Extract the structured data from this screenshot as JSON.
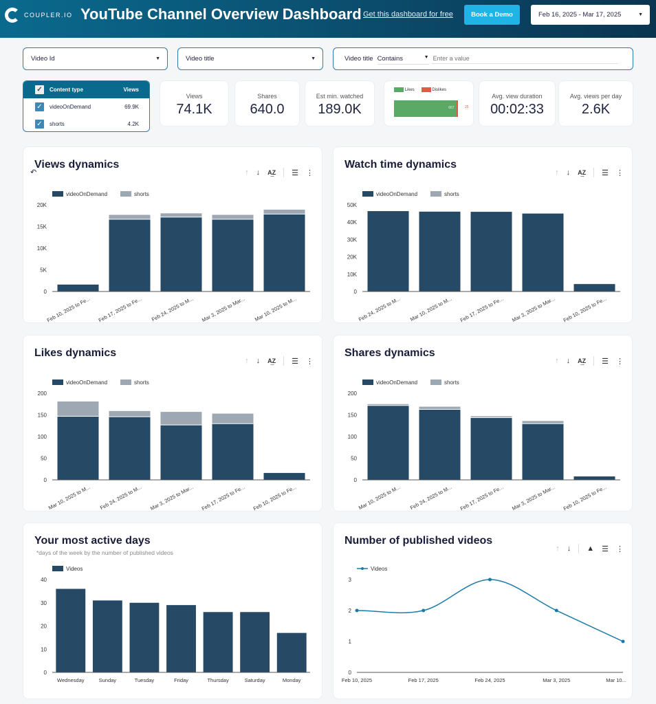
{
  "header": {
    "logo": "COUPLER.IO",
    "title": "YouTube Channel Overview Dashboard",
    "link": "Get this dashboard for free",
    "demo": "Book a Demo",
    "date_range": "Feb 16, 2025 - Mar 17, 2025"
  },
  "filters": {
    "video_id": "Video Id",
    "video_title": "Video title",
    "search_label": "Video title",
    "search_operator": "Contains",
    "search_placeholder": "Enter a value"
  },
  "content_table": {
    "headers": [
      "Content type",
      "Views"
    ],
    "rows": [
      {
        "type": "videoOnDemand",
        "views": "69.9K"
      },
      {
        "type": "shorts",
        "views": "4.2K"
      }
    ]
  },
  "kpis": [
    {
      "label": "Views",
      "value": "74.1K"
    },
    {
      "label": "Shares",
      "value": "640.0"
    },
    {
      "label": "Est min. watched",
      "value": "189.0K"
    },
    {
      "label": "Avg. view duration",
      "value": "00:02:33"
    },
    {
      "label": "Avg. views per day",
      "value": "2.6K"
    }
  ],
  "likes_dislikes": {
    "legend": [
      "Likes",
      "Dislikes"
    ],
    "likes": 667,
    "dislikes": 25,
    "likes_label": "667",
    "dislikes_label": "25",
    "colors": [
      "#5aa964",
      "#e05a47"
    ]
  },
  "colors": {
    "videoOnDemand": "#264a66",
    "shorts": "#9ea8b2",
    "line": "#1a7aa8"
  },
  "chart_data": [
    {
      "type": "bar",
      "stacked": true,
      "title": "Views dynamics",
      "categories": [
        "Feb 10, 2025 to Fe...",
        "Feb 17, 2025 to Fe...",
        "Feb 24, 2025 to M...",
        "Mar 3, 2025 to Mar...",
        "Mar 10, 2025 to M..."
      ],
      "series": [
        {
          "name": "videoOnDemand",
          "values": [
            1600,
            16600,
            17100,
            16600,
            17800
          ]
        },
        {
          "name": "shorts",
          "values": [
            0,
            1100,
            950,
            1100,
            1100
          ]
        }
      ],
      "ylim": [
        0,
        20000
      ],
      "yticks": [
        "0",
        "5K",
        "10K",
        "15K",
        "20K"
      ],
      "legend": "top-left"
    },
    {
      "type": "bar",
      "stacked": true,
      "title": "Watch time dynamics",
      "categories": [
        "Feb 24, 2025 to M...",
        "Mar 10, 2025 to M...",
        "Feb 17, 2025 to Fe...",
        "Mar 3, 2025 to Mar...",
        "Feb 10, 2025 to Fe..."
      ],
      "series": [
        {
          "name": "videoOnDemand",
          "values": [
            46400,
            46100,
            46000,
            45000,
            4300
          ]
        },
        {
          "name": "shorts",
          "values": [
            200,
            200,
            200,
            200,
            0
          ]
        }
      ],
      "ylim": [
        0,
        50000
      ],
      "yticks": [
        "0",
        "10K",
        "20K",
        "30K",
        "40K",
        "50K"
      ],
      "legend": "top-left"
    },
    {
      "type": "bar",
      "stacked": true,
      "title": "Likes dynamics",
      "categories": [
        "Mar 10, 2025 to M...",
        "Feb 24, 2025 to M...",
        "Mar 3, 2025 to Mar...",
        "Feb 17, 2025 to Fe...",
        "Feb 10, 2025 to Fe..."
      ],
      "series": [
        {
          "name": "videoOnDemand",
          "values": [
            146,
            145,
            126,
            129,
            16
          ]
        },
        {
          "name": "shorts",
          "values": [
            35,
            14,
            31,
            24,
            0
          ]
        }
      ],
      "ylim": [
        0,
        200
      ],
      "yticks": [
        "0",
        "50",
        "100",
        "150",
        "200"
      ],
      "legend": "top-left"
    },
    {
      "type": "bar",
      "stacked": true,
      "title": "Shares dynamics",
      "categories": [
        "Mar 10, 2025 to M...",
        "Feb 24, 2025 to M...",
        "Feb 17, 2025 to Fe...",
        "Mar 3, 2025 to Mar...",
        "Feb 10, 2025 to Fe..."
      ],
      "series": [
        {
          "name": "videoOnDemand",
          "values": [
            171,
            162,
            143,
            129,
            8
          ]
        },
        {
          "name": "shorts",
          "values": [
            4,
            7,
            4,
            7,
            0
          ]
        }
      ],
      "ylim": [
        0,
        200
      ],
      "yticks": [
        "0",
        "50",
        "100",
        "150",
        "200"
      ],
      "legend": "top-left"
    },
    {
      "type": "bar",
      "title": "Your most active days",
      "subtitle": "*days of the week by the number of published videos",
      "categories": [
        "Wednesday",
        "Sunday",
        "Tuesday",
        "Friday",
        "Thursday",
        "Saturday",
        "Monday"
      ],
      "series": [
        {
          "name": "Videos",
          "values": [
            36,
            31,
            30,
            29,
            26,
            26,
            17
          ]
        }
      ],
      "ylim": [
        0,
        40
      ],
      "yticks": [
        "0",
        "10",
        "20",
        "30",
        "40"
      ],
      "legend": "top-left"
    },
    {
      "type": "line",
      "title": "Number of published videos",
      "categories": [
        "Feb 10, 2025",
        "Feb 17, 2025",
        "Feb 24, 2025",
        "Mar 3, 2025",
        "Mar 10..."
      ],
      "series": [
        {
          "name": "Videos",
          "values": [
            2,
            2,
            3,
            2,
            1
          ]
        }
      ],
      "ylim": [
        0,
        3
      ],
      "yticks": [
        "0",
        "1",
        "2",
        "3"
      ],
      "legend": "top-left"
    }
  ]
}
